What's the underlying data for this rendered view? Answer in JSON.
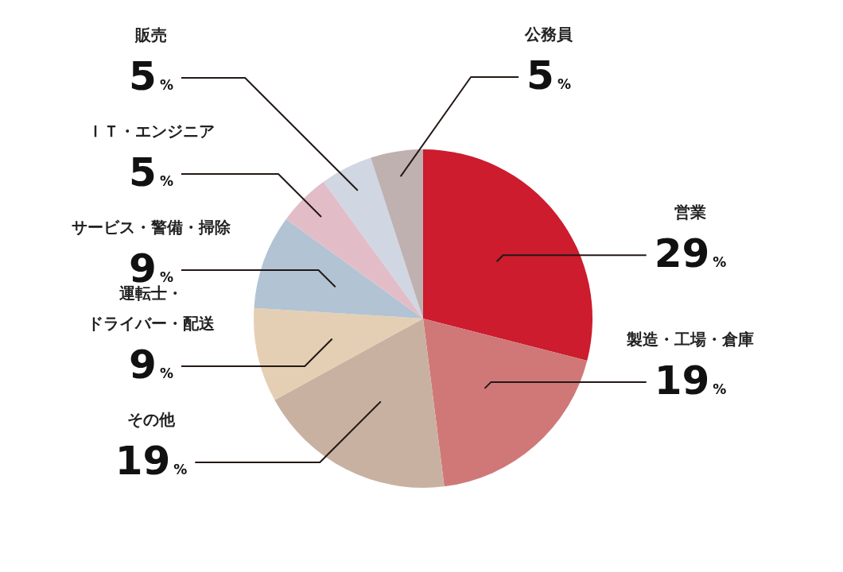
{
  "chart_data": {
    "type": "pie",
    "categories": [
      "営業",
      "製造・工場・倉庫",
      "その他",
      "運転士・ドライバー・配送",
      "サービス・警備・掃除",
      "ＩＴ・エンジニア",
      "販売",
      "公務員"
    ],
    "values": [
      29,
      19,
      19,
      9,
      9,
      5,
      5,
      5
    ],
    "value_labels": [
      "29%",
      "19%",
      "19%",
      "9%",
      "9%",
      "5%",
      "5%",
      "5%"
    ],
    "colors": [
      "#cc1c2e",
      "#d07878",
      "#c9b1a2",
      "#e5cfb4",
      "#b2c3d3",
      "#e2bdc8",
      "#d0d6e2",
      "#bfb1b0"
    ]
  }
}
